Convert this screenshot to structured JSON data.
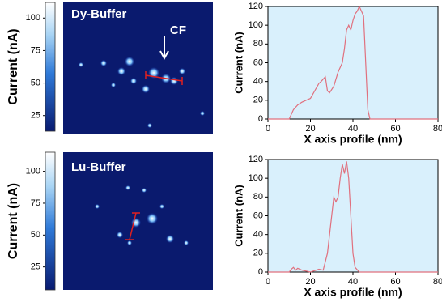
{
  "chart_data": [
    {
      "type": "line",
      "ylabel": "Current (nA)",
      "xlabel": "X axis profile (nm)",
      "xlim": [
        0,
        80
      ],
      "xticks": [
        0,
        20,
        40,
        60,
        80
      ],
      "ylim": [
        0,
        120
      ],
      "yticks": [
        0,
        20,
        40,
        60,
        80,
        100,
        120
      ],
      "series": [
        {
          "color": "#e0707e",
          "x": [
            0,
            10,
            12,
            14,
            16,
            18,
            20,
            22,
            24,
            25,
            27,
            28,
            29,
            31,
            33,
            35,
            36,
            37,
            38,
            39,
            40,
            41,
            42,
            43,
            44,
            45,
            46,
            47,
            48,
            50,
            80
          ],
          "values": [
            0,
            0,
            10,
            15,
            18,
            20,
            22,
            30,
            38,
            40,
            45,
            30,
            28,
            35,
            50,
            60,
            75,
            95,
            100,
            95,
            105,
            112,
            115,
            120,
            115,
            110,
            60,
            10,
            0,
            0,
            0
          ]
        }
      ]
    },
    {
      "type": "line",
      "ylabel": "Current (nA)",
      "xlabel": "X axis profile (nm)",
      "xlim": [
        0,
        80
      ],
      "xticks": [
        0,
        20,
        40,
        60,
        80
      ],
      "ylim": [
        0,
        120
      ],
      "yticks": [
        0,
        20,
        40,
        60,
        80,
        100,
        120
      ],
      "series": [
        {
          "color": "#e0707e",
          "x": [
            0,
            10,
            11,
            12,
            13,
            14,
            16,
            20,
            24,
            26,
            28,
            30,
            31,
            32,
            33,
            34,
            35,
            36,
            37,
            38,
            39,
            40,
            41,
            43,
            80
          ],
          "values": [
            0,
            0,
            3,
            5,
            2,
            4,
            2,
            0,
            3,
            2,
            20,
            60,
            80,
            75,
            80,
            100,
            115,
            105,
            118,
            100,
            60,
            20,
            5,
            0,
            0
          ]
        }
      ]
    }
  ],
  "panels": [
    {
      "label": "Dy-Buffer",
      "annotation": "CF",
      "colorbar": {
        "label": "Current (nA)",
        "lim": [
          13,
          112
        ],
        "ticks": [
          25,
          50,
          75,
          100
        ]
      }
    },
    {
      "label": "Lu-Buffer",
      "colorbar": {
        "label": "Current (nA)",
        "lim": [
          7,
          115
        ],
        "ticks": [
          25,
          50,
          75,
          100
        ]
      }
    }
  ]
}
